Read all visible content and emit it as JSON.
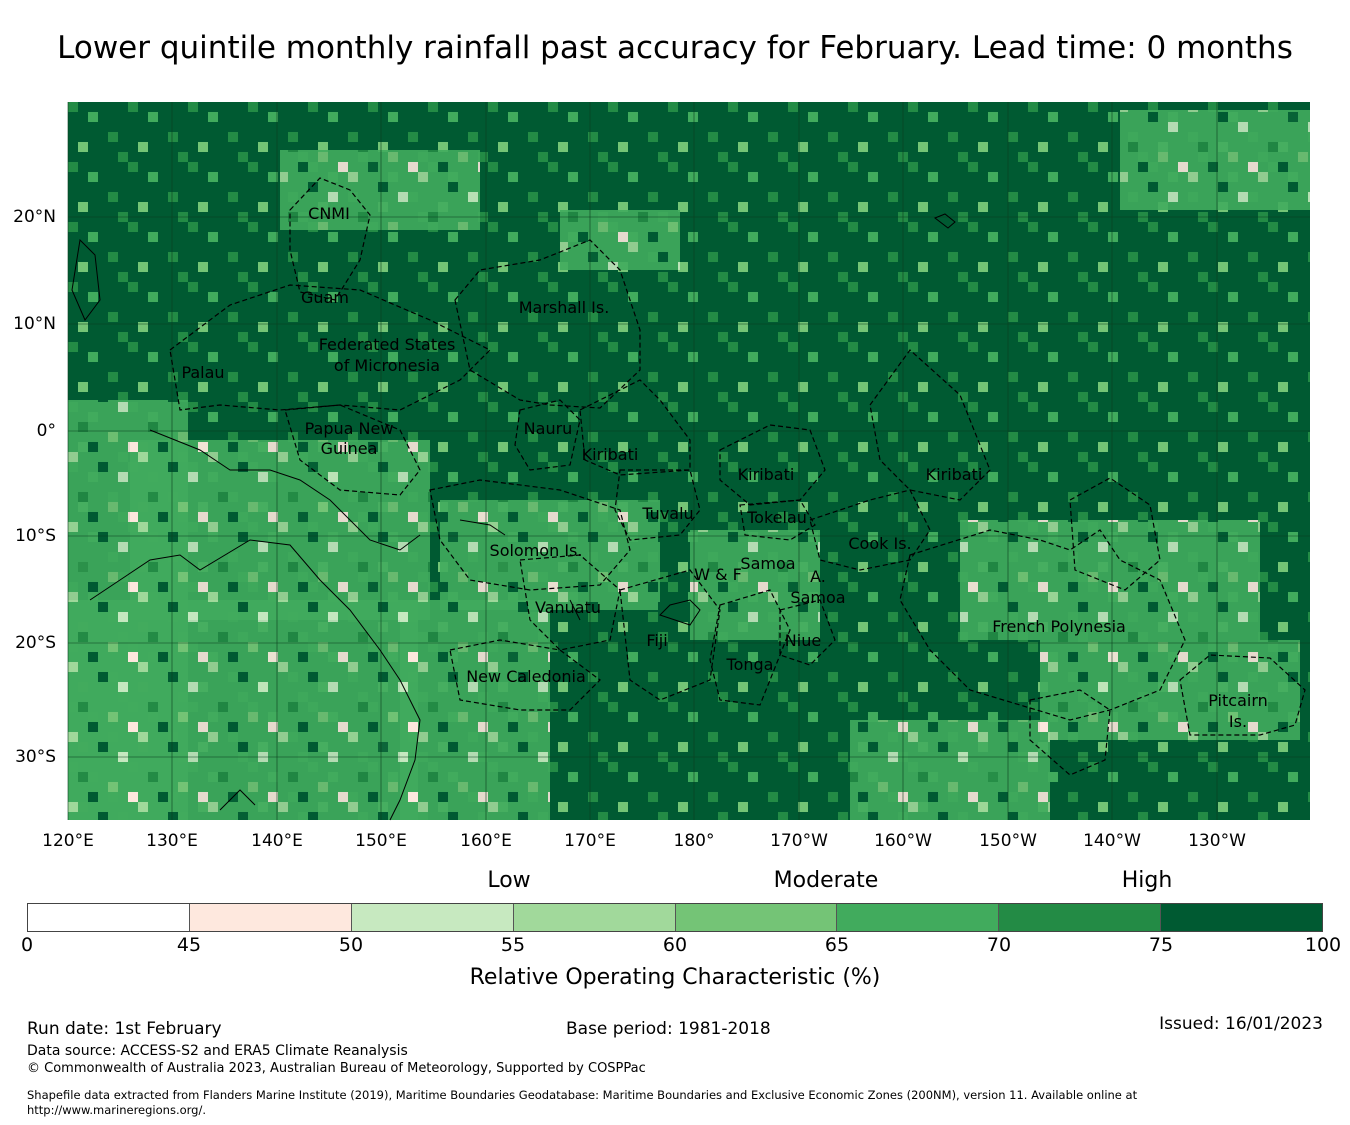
{
  "title": "Lower quintile monthly rainfall past accuracy for February. Lead time: 0 months",
  "map": {
    "lon_ticks": [
      "120°E",
      "130°E",
      "140°E",
      "150°E",
      "160°E",
      "170°E",
      "180°",
      "170°W",
      "160°W",
      "150°W",
      "140°W",
      "130°W"
    ],
    "lat_ticks": [
      "20°N",
      "10°N",
      "0°",
      "10°S",
      "20°S",
      "30°S"
    ],
    "region_labels": [
      "CNMI",
      "Guam",
      "Marshall Is.",
      "Federated States",
      "of Micronesia",
      "Palau",
      "Papua New",
      "Guinea",
      "Nauru",
      "Kiribati",
      "Kiribati",
      "Kiribati",
      "Tuvalu",
      "Tokelau",
      "Cook Is.",
      "Solomon Is.",
      "Samoa",
      "W & F",
      "A.",
      "Samoa",
      "Vanuatu",
      "Fiji",
      "Niue",
      "Tonga",
      "French Polynesia",
      "New Caledonia",
      "Pitcairn",
      "Is."
    ]
  },
  "legend": {
    "categories": [
      "Low",
      "Moderate",
      "High"
    ],
    "colors": [
      "#ffffff",
      "#fee8de",
      "#c7e9c0",
      "#a1d99b",
      "#74c476",
      "#41ab5d",
      "#238b45",
      "#005a32"
    ],
    "ticks": [
      "0",
      "45",
      "50",
      "55",
      "60",
      "65",
      "70",
      "75",
      "100"
    ],
    "label": "Relative Operating Characteristic (%)"
  },
  "footer": {
    "run_date": "Run date: 1st February",
    "base_period": "Base period: 1981-2018",
    "issued": "Issued: 16/01/2023",
    "data_source": "Data source: ACCESS-S2 and ERA5 Climate Reanalysis",
    "copyright": "© Commonwealth of Australia 2023, Australian Bureau of Meteorology, Supported by COSPPac",
    "shapefile_line1": "Shapefile data extracted from Flanders Marine Institute (2019), Maritime Boundaries Geodatabase: Maritime Boundaries and Exclusive Economic Zones (200NM), version 11. Available online at",
    "shapefile_line2": "http://www.marineregions.org/."
  }
}
